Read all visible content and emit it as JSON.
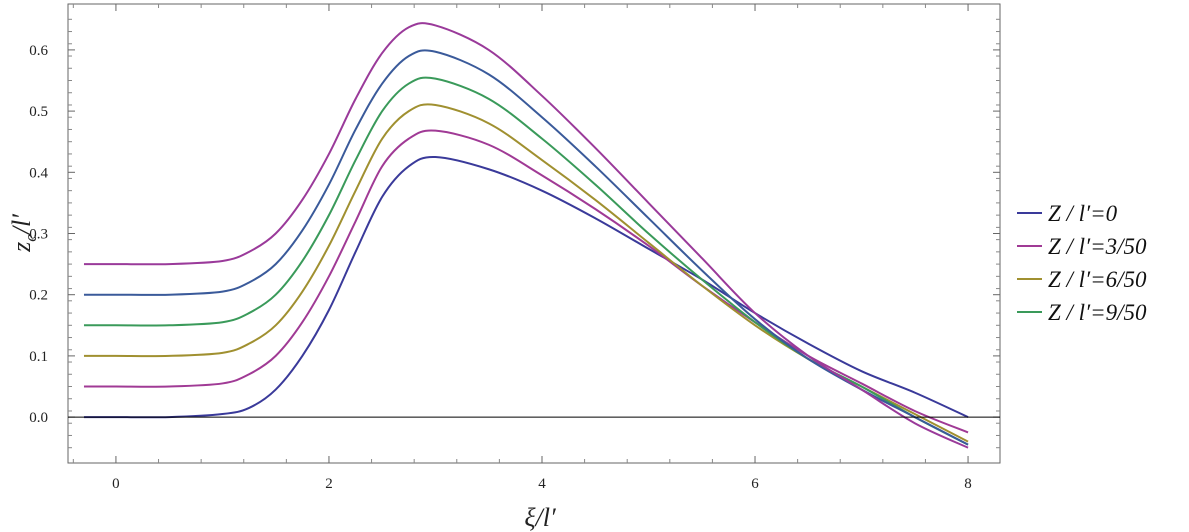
{
  "chart_data": {
    "type": "line",
    "xlabel": "ξ/l′",
    "ylabel": "z_e/l′",
    "xlim": [
      -0.45,
      8.3
    ],
    "ylim": [
      -0.075,
      0.675
    ],
    "x_ticks": [
      0,
      2,
      4,
      6,
      8
    ],
    "x_tick_labels": [
      "0",
      "2",
      "4",
      "6",
      "8"
    ],
    "y_ticks": [
      0.0,
      0.1,
      0.2,
      0.3,
      0.4,
      0.5,
      0.6
    ],
    "y_tick_labels": [
      "0.0",
      "0.1",
      "0.2",
      "0.3",
      "0.4",
      "0.5",
      "0.6"
    ],
    "grid": false,
    "zero_line": true,
    "legend_position": "right",
    "x": [
      -0.3,
      0,
      0.5,
      1.0,
      1.25,
      1.5,
      1.75,
      2.0,
      2.25,
      2.5,
      2.75,
      3.0,
      3.5,
      4.0,
      4.5,
      5.0,
      5.5,
      6.0,
      6.5,
      7.0,
      7.5,
      8.0
    ],
    "series": [
      {
        "name": "Z / l′=0",
        "color": "#3a3a9a",
        "values": [
          0,
          0,
          0,
          0.005,
          0.015,
          0.045,
          0.1,
          0.175,
          0.27,
          0.36,
          0.41,
          0.425,
          0.405,
          0.37,
          0.325,
          0.275,
          0.225,
          0.17,
          0.12,
          0.075,
          0.04,
          0.0
        ]
      },
      {
        "name": "Z / l′=3/50",
        "color": "#a03a95",
        "values": [
          0.05,
          0.05,
          0.05,
          0.055,
          0.07,
          0.1,
          0.155,
          0.23,
          0.32,
          0.41,
          0.455,
          0.468,
          0.445,
          0.395,
          0.34,
          0.28,
          0.215,
          0.155,
          0.1,
          0.055,
          0.01,
          -0.025
        ]
      },
      {
        "name": "Z / l′=6/50",
        "color": "#a09030",
        "values": [
          0.1,
          0.1,
          0.1,
          0.105,
          0.12,
          0.15,
          0.205,
          0.28,
          0.37,
          0.455,
          0.5,
          0.51,
          0.48,
          0.42,
          0.355,
          0.285,
          0.215,
          0.15,
          0.095,
          0.05,
          0.005,
          -0.04
        ]
      },
      {
        "name": "Z / l′=9/50",
        "color": "#3a9a5a",
        "values": [
          0.15,
          0.15,
          0.15,
          0.155,
          0.17,
          0.2,
          0.255,
          0.33,
          0.42,
          0.5,
          0.545,
          0.553,
          0.52,
          0.455,
          0.38,
          0.3,
          0.225,
          0.155,
          0.095,
          0.05,
          0.0,
          -0.045
        ]
      },
      {
        "name": "",
        "color": "#3a5a9a",
        "values": [
          0.2,
          0.2,
          0.2,
          0.205,
          0.22,
          0.25,
          0.305,
          0.38,
          0.47,
          0.545,
          0.59,
          0.597,
          0.56,
          0.49,
          0.41,
          0.325,
          0.24,
          0.16,
          0.095,
          0.045,
          0.0,
          -0.045
        ]
      },
      {
        "name": "",
        "color": "#9a3a9a",
        "values": [
          0.25,
          0.25,
          0.25,
          0.255,
          0.27,
          0.3,
          0.355,
          0.43,
          0.52,
          0.595,
          0.637,
          0.64,
          0.6,
          0.525,
          0.44,
          0.35,
          0.26,
          0.17,
          0.1,
          0.045,
          -0.01,
          -0.05
        ]
      }
    ]
  }
}
